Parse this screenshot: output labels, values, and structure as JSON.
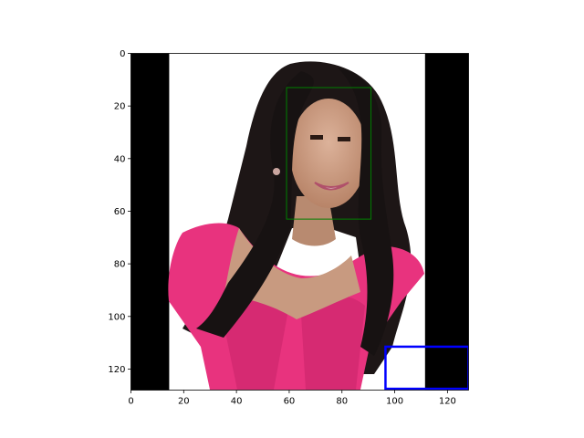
{
  "figure": {
    "background": "#ffffff",
    "axes_color": "#000000",
    "image_content": "person-photo"
  },
  "axes": {
    "x_range": [
      0,
      128
    ],
    "y_range": [
      128,
      0
    ],
    "x_ticks": [
      0,
      20,
      40,
      60,
      80,
      100,
      120
    ],
    "y_ticks": [
      0,
      20,
      40,
      60,
      80,
      100,
      120
    ],
    "x_tick_labels": [
      "0",
      "20",
      "40",
      "60",
      "80",
      "100",
      "120"
    ],
    "y_tick_labels": [
      "0",
      "20",
      "40",
      "60",
      "80",
      "100",
      "120"
    ]
  },
  "image_regions": {
    "left_padding_end_x": 14.5,
    "right_padding_start_x": 111.5,
    "padding_color": "#000000",
    "photo_background": "#ffffff",
    "dress_color": "#e8337e",
    "hair_color": "#1a1414",
    "skin_color": "#c89a80"
  },
  "overlays": {
    "face_box": {
      "x0": 59,
      "y0": 13,
      "x1": 91,
      "y1": 63,
      "color": "#008000"
    },
    "crop_box": {
      "x0": 96.5,
      "y0": 111.5,
      "x1": 128,
      "y1": 127.5,
      "color": "#0000ff"
    }
  }
}
